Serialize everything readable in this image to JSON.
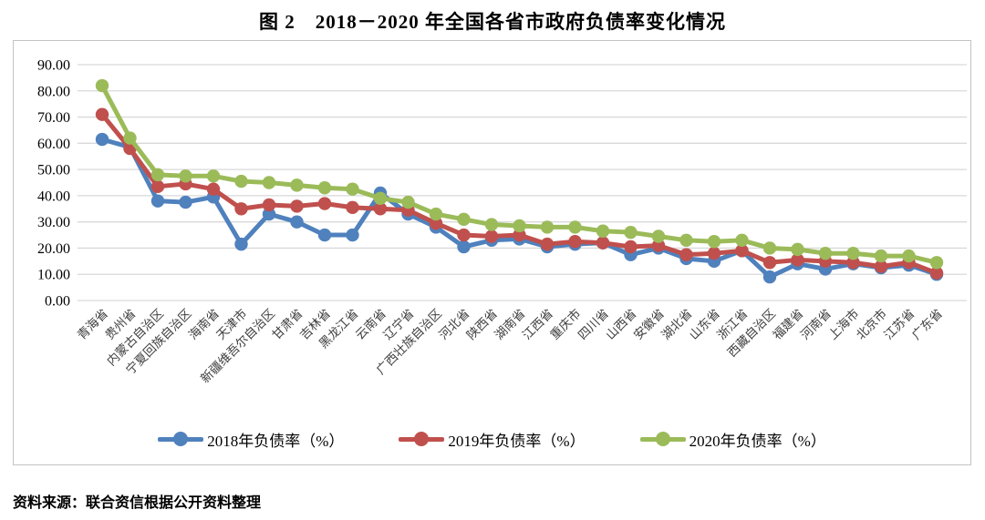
{
  "title": "图 2　2018－2020 年全国各省市政府负债率变化情况",
  "source": "资料来源：联合资信根据公开资料整理",
  "colors": {
    "grid": "#d9d9d9",
    "box_border": "#c3c3c3",
    "axis_text": "#000000"
  },
  "chart_data": {
    "type": "line",
    "title": "图 2 2018－2020 年全国各省市政府负债率变化情况",
    "xlabel": "",
    "ylabel": "",
    "ylim": [
      0,
      90
    ],
    "ytick_step": 10,
    "yticks": [
      "90.00",
      "80.00",
      "70.00",
      "60.00",
      "50.00",
      "40.00",
      "30.00",
      "20.00",
      "10.00",
      "0.00"
    ],
    "grid": true,
    "legend_position": "bottom",
    "marker": "circle",
    "categories": [
      "青海省",
      "贵州省",
      "内蒙古自治区",
      "宁夏回族自治区",
      "海南省",
      "天津市",
      "新疆维吾尔自治区",
      "甘肃省",
      "吉林省",
      "黑龙江省",
      "云南省",
      "辽宁省",
      "广西壮族自治区",
      "河北省",
      "陕西省",
      "湖南省",
      "江西省",
      "重庆市",
      "四川省",
      "山西省",
      "安徽省",
      "湖北省",
      "山东省",
      "浙江省",
      "西藏自治区",
      "福建省",
      "河南省",
      "上海市",
      "北京市",
      "江苏省",
      "广东省"
    ],
    "series": [
      {
        "name": "2018年负债率（%）",
        "color": "#4F81BD",
        "values": [
          61.5,
          58.5,
          38.0,
          37.5,
          39.5,
          21.5,
          33.0,
          30.0,
          25.0,
          25.0,
          41.0,
          33.0,
          28.0,
          20.5,
          23.0,
          23.5,
          20.5,
          21.5,
          22.0,
          17.5,
          20.0,
          16.0,
          15.0,
          19.0,
          9.0,
          14.0,
          12.0,
          14.0,
          12.5,
          13.5,
          10.0
        ]
      },
      {
        "name": "2019年负债率（%）",
        "color": "#C0504D",
        "values": [
          71.0,
          58.0,
          43.5,
          44.5,
          42.5,
          35.0,
          36.5,
          36.0,
          37.0,
          35.5,
          35.0,
          34.5,
          29.5,
          25.0,
          24.5,
          25.0,
          21.5,
          22.5,
          22.0,
          20.5,
          21.0,
          17.5,
          18.0,
          19.0,
          14.5,
          15.5,
          15.0,
          14.5,
          13.0,
          14.5,
          10.5
        ]
      },
      {
        "name": "2020年负债率（%）",
        "color": "#9BBB59",
        "values": [
          82.0,
          62.0,
          48.0,
          47.5,
          47.5,
          45.5,
          45.0,
          44.0,
          43.0,
          42.5,
          39.0,
          37.5,
          33.0,
          31.0,
          29.0,
          28.5,
          28.0,
          28.0,
          26.5,
          26.0,
          24.5,
          23.0,
          22.5,
          23.0,
          20.0,
          19.5,
          18.0,
          18.0,
          17.0,
          17.0,
          14.5
        ]
      }
    ]
  }
}
